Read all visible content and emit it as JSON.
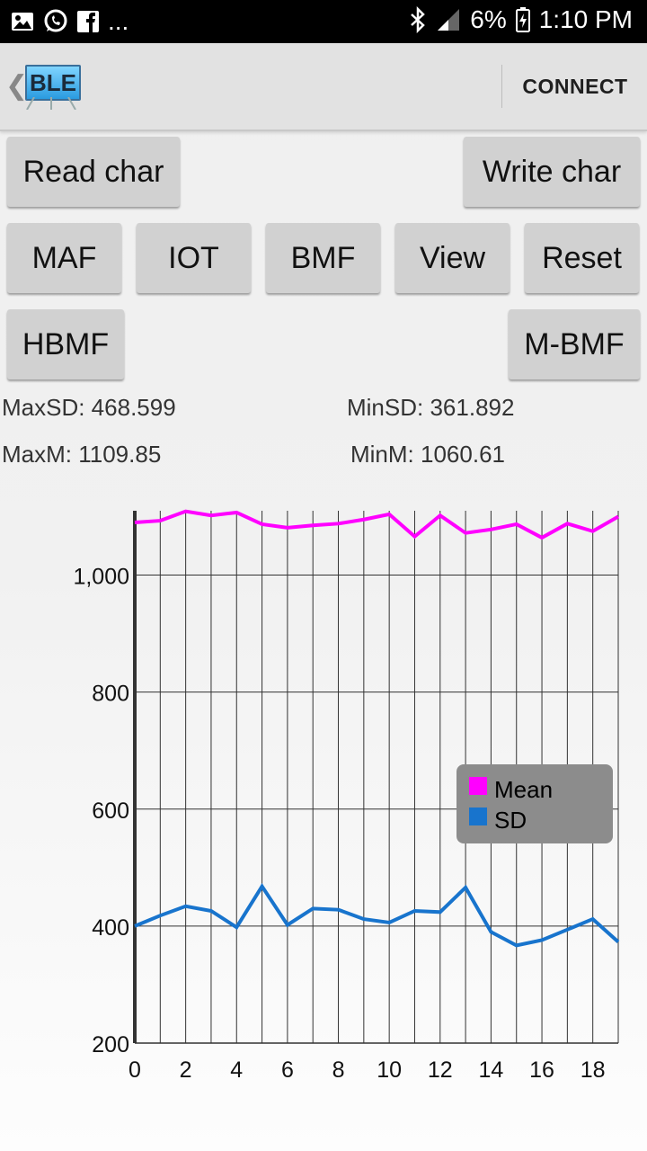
{
  "status_bar": {
    "battery": "6%",
    "time": "1:10 PM",
    "overflow": "..."
  },
  "app_bar": {
    "logo_text": "BLE",
    "connect_label": "CONNECT"
  },
  "buttons": {
    "read_char": "Read char",
    "write_char": "Write char",
    "maf": "MAF",
    "iot": "IOT",
    "bmf": "BMF",
    "view": "View",
    "reset": "Reset",
    "hbmf": "HBMF",
    "mbmf": "M-BMF"
  },
  "stats": {
    "max_sd": "MaxSD: 468.599",
    "min_sd": "MinSD: 361.892",
    "max_m": "MaxM: 1109.85",
    "min_m": "MinM: 1060.61"
  },
  "chart_data": {
    "type": "line",
    "title": "",
    "xlabel": "",
    "ylabel": "",
    "xlim": [
      0,
      19
    ],
    "ylim": [
      200,
      1110
    ],
    "x_ticks": [
      0,
      2,
      4,
      6,
      8,
      10,
      12,
      14,
      16,
      18
    ],
    "y_ticks": [
      200,
      400,
      600,
      800,
      1000
    ],
    "y_tick_labels": [
      "200",
      "400",
      "600",
      "800",
      "1,000"
    ],
    "grid": true,
    "legend": "right",
    "series": [
      {
        "name": "Mean",
        "color": "#ff00ff",
        "x": [
          0,
          1,
          2,
          3,
          4,
          5,
          6,
          7,
          8,
          9,
          10,
          11,
          12,
          13,
          14,
          15,
          16,
          17,
          18,
          19
        ],
        "values": [
          1090,
          1093,
          1109,
          1102,
          1107,
          1087,
          1081,
          1085,
          1088,
          1095,
          1104,
          1066,
          1102,
          1072,
          1078,
          1087,
          1064,
          1088,
          1075,
          1100
        ]
      },
      {
        "name": "SD",
        "color": "#1874cd",
        "x": [
          0,
          1,
          2,
          3,
          4,
          5,
          6,
          7,
          8,
          9,
          10,
          11,
          12,
          13,
          14,
          15,
          16,
          17,
          18,
          19
        ],
        "values": [
          400,
          418,
          434,
          426,
          398,
          468,
          402,
          430,
          428,
          412,
          406,
          426,
          424,
          466,
          390,
          367,
          376,
          394,
          412,
          373
        ]
      }
    ]
  }
}
